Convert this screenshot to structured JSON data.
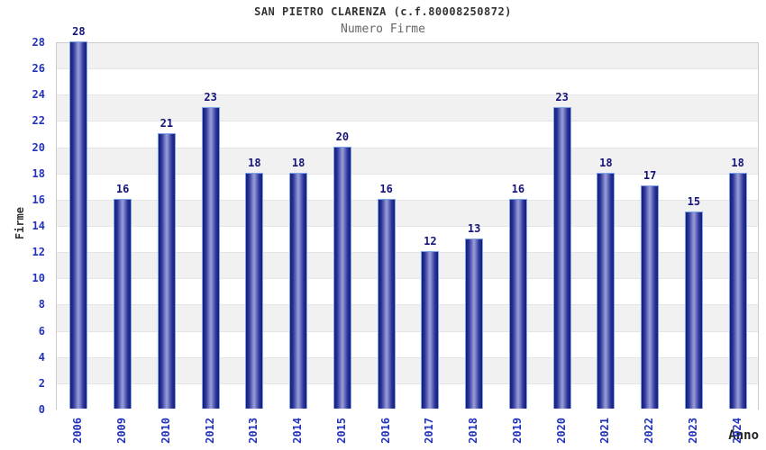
{
  "chart_data": {
    "type": "bar",
    "title": "SAN PIETRO CLARENZA (c.f.80008250872)",
    "subtitle": "Numero Firme",
    "xlabel": "Anno",
    "ylabel": "Firme",
    "categories": [
      "2006",
      "2009",
      "2010",
      "2012",
      "2013",
      "2014",
      "2015",
      "2016",
      "2017",
      "2018",
      "2019",
      "2020",
      "2021",
      "2022",
      "2023",
      "2024"
    ],
    "values": [
      28,
      16,
      21,
      23,
      18,
      18,
      20,
      16,
      12,
      13,
      16,
      23,
      18,
      17,
      15,
      18
    ],
    "ylim": [
      0,
      28
    ],
    "ytick_step": 2,
    "legend": "none",
    "grid": "alternating horizontal bands every 2 units, light gray / white",
    "bar_value_labels": true,
    "x_tick_rotation_deg": 90,
    "colors": {
      "tick_label": "#2233bb",
      "value_label": "#14147a",
      "title": "#333333",
      "subtitle": "#666666",
      "axis_label": "#333333",
      "bar_dark": "#161c74",
      "bar_mid": "#2b339b",
      "bar_light": "#9aa0d8",
      "bar_border": "#7ca6e8",
      "band_gray": "#f1f1f1",
      "band_white": "#ffffff",
      "plot_border": "#cccccc",
      "grid_line": "#e4e4e4"
    }
  }
}
